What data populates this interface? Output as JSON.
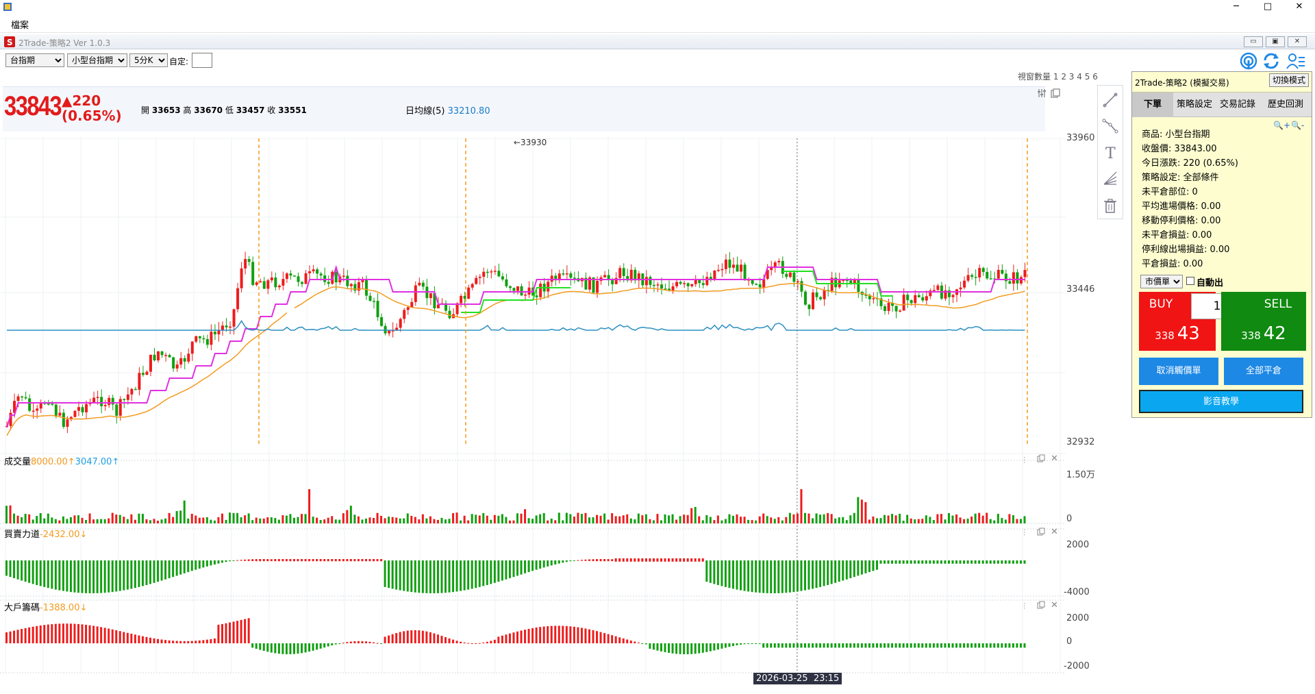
{
  "window": {
    "menu_file": "檔案",
    "minimize": "─",
    "maximize": "□",
    "close": "✕"
  },
  "child_window": {
    "title": "2Trade-策略2 Ver 1.0.3",
    "btn_min": "▭",
    "btn_restore": "▣",
    "btn_close": "✕"
  },
  "toolbar": {
    "market_select": "台指期",
    "product_select": "小型台指期",
    "period_select": "5分K",
    "custom_label": "自定:",
    "custom_value": "",
    "window_count_label": "視窗數量",
    "window_counts": [
      "1",
      "2",
      "3",
      "4",
      "5",
      "6"
    ]
  },
  "quote": {
    "last_price": "33843",
    "change": "▲220",
    "change_pct": "(0.65%)",
    "open_label": "開",
    "open": "33653",
    "high_label": "高",
    "high": "33670",
    "low_label": "低",
    "low": "33457",
    "close_label": "收",
    "close": "33551",
    "ma_label": "日均線(5)",
    "ma_value": "33210.80"
  },
  "price_chart": {
    "y_ticks": [
      "33960",
      "33446",
      "32932"
    ],
    "peak_label": "←33930",
    "crosshair_time": "2026-03-25  23:15"
  },
  "volume_pane": {
    "title": "成交量",
    "value1": "8000.00↑",
    "value2": "3047.00↑",
    "y_ticks": [
      "1.50万",
      "0"
    ]
  },
  "force_pane": {
    "title": "買賣力道",
    "value": "-2432.00↓",
    "y_ticks": [
      "2000",
      "-4000"
    ]
  },
  "chips_pane": {
    "title": "大戶籌碼",
    "value": "-1388.00↓",
    "y_ticks": [
      "2000",
      "0",
      "-2000"
    ]
  },
  "panel": {
    "title": "2Trade-策略2 (模擬交易)",
    "switch_mode": "切換模式",
    "tabs": [
      "下單",
      "策略設定",
      "交易記錄",
      "歷史回測"
    ],
    "zoom_in": "🔍+",
    "zoom_out": "🔍-",
    "lines": [
      "商品: 小型台指期",
      "收盤價: 33843.00",
      "今日漲跌: 220 (0.65%)",
      "策略設定: 全部條件",
      "未平倉部位: 0",
      "平均進場價格: 0.00",
      "移動停利價格: 0.00",
      "未平倉損益: 0.00",
      "停利線出場損益: 0.00",
      "平倉損益: 0.00"
    ],
    "order_type": "市價單",
    "auto_exit_label": "自動出",
    "buy_label": "BUY",
    "sell_label": "SELL",
    "qty": "1",
    "buy_price_prefix": "338",
    "buy_price_suffix": "43",
    "sell_price_prefix": "338",
    "sell_price_suffix": "42",
    "cancel_trigger": "取消觸價單",
    "close_all": "全部平倉",
    "video_tutorial": "影音教學"
  },
  "colors": {
    "up": "#ee1c1c",
    "down": "#10a010",
    "buy_bg": "#f01414",
    "sell_bg": "#108a10",
    "blue_btn": "#1e88e5",
    "cyan_btn": "#0aa6f0",
    "orange_line": "#f39a1e",
    "magenta_line": "#e030e0",
    "green_line": "#22e022",
    "blue_line": "#2b8fc2"
  }
}
